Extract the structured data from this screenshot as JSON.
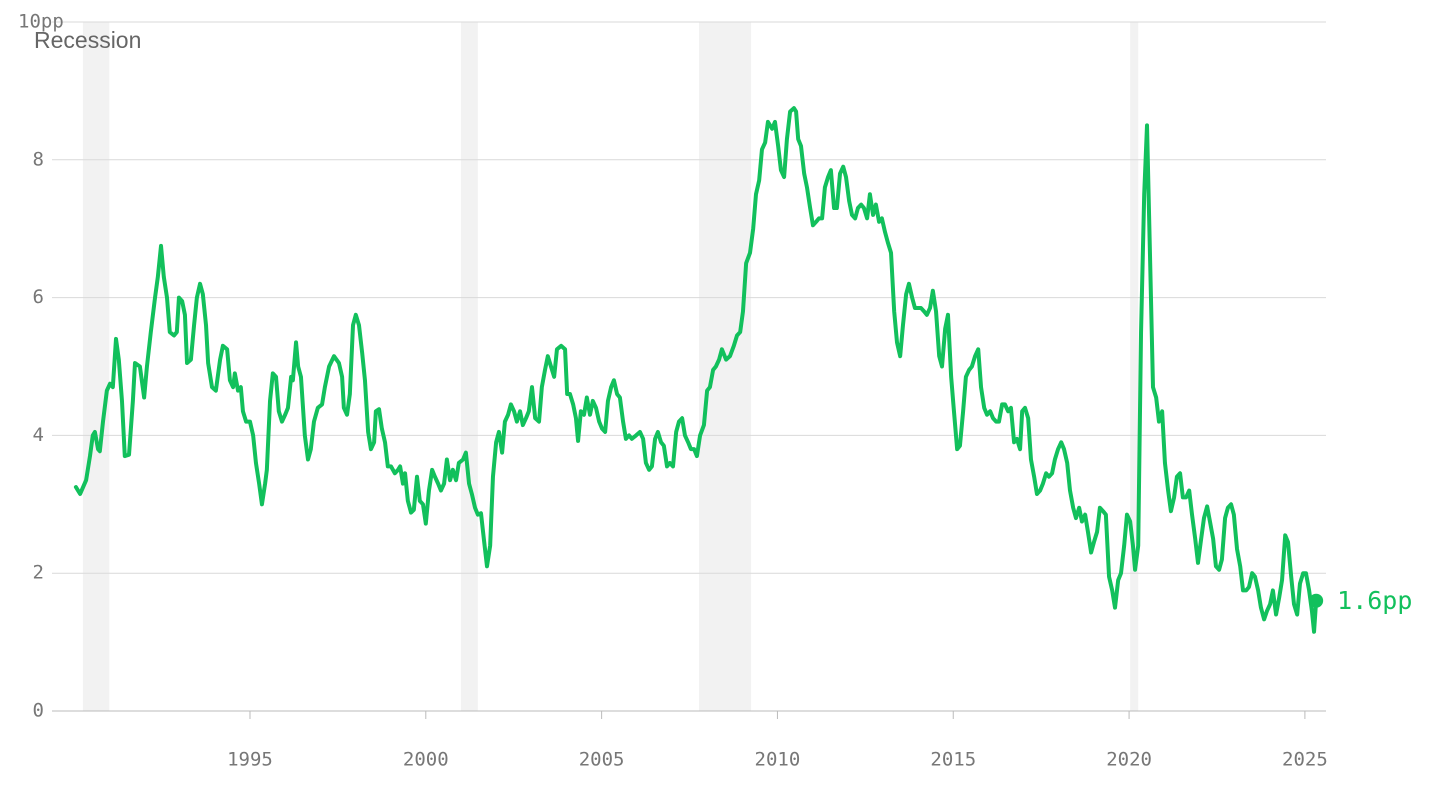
{
  "chart_data": {
    "type": "line",
    "color": "#12c05c",
    "recessions": {
      "label": "Recession",
      "color": "#f2f2f2",
      "spans": [
        [
          1990.25,
          1991.0
        ],
        [
          2001.0,
          2001.48
        ],
        [
          2007.77,
          2009.25
        ],
        [
          2020.03,
          2020.26
        ]
      ]
    },
    "last_label": "1.6pp",
    "xlim": [
      1989.37,
      2025.6
    ],
    "xticks": [
      1995,
      2000,
      2005,
      2010,
      2015,
      2020,
      2025
    ],
    "ylim": [
      0,
      10
    ],
    "yticks": [
      0,
      2,
      4,
      6,
      8,
      {
        "value": 10,
        "label": "10pp"
      }
    ],
    "grid": true,
    "x": [
      1990.05,
      1990.17,
      1990.34,
      1990.45,
      1990.53,
      1990.59,
      1990.68,
      1990.73,
      1990.82,
      1990.93,
      1991.02,
      1991.1,
      1991.19,
      1991.27,
      1991.36,
      1991.44,
      1991.56,
      1991.67,
      1991.73,
      1991.87,
      1991.99,
      1992.07,
      1992.18,
      1992.3,
      1992.38,
      1992.47,
      1992.55,
      1992.64,
      1992.72,
      1992.84,
      1992.92,
      1992.98,
      1993.07,
      1993.15,
      1993.21,
      1993.32,
      1993.41,
      1993.49,
      1993.58,
      1993.66,
      1993.75,
      1993.81,
      1993.92,
      1994.03,
      1994.15,
      1994.23,
      1994.35,
      1994.43,
      1994.52,
      1994.57,
      1994.66,
      1994.74,
      1994.8,
      1994.89,
      1995.0,
      1995.09,
      1995.17,
      1995.26,
      1995.34,
      1995.43,
      1995.48,
      1995.57,
      1995.65,
      1995.74,
      1995.82,
      1995.91,
      1996.0,
      1996.08,
      1996.17,
      1996.22,
      1996.31,
      1996.37,
      1996.45,
      1996.56,
      1996.65,
      1996.73,
      1996.82,
      1996.93,
      1997.05,
      1997.13,
      1997.25,
      1997.39,
      1997.53,
      1997.62,
      1997.67,
      1997.76,
      1997.84,
      1997.93,
      1998.01,
      1998.1,
      1998.19,
      1998.27,
      1998.36,
      1998.44,
      1998.53,
      1998.58,
      1998.67,
      1998.75,
      1998.84,
      1998.92,
      1999.01,
      1999.12,
      1999.21,
      1999.27,
      1999.35,
      1999.41,
      1999.49,
      1999.58,
      1999.66,
      1999.75,
      1999.83,
      1999.92,
      2000.0,
      2000.09,
      2000.18,
      2000.26,
      2000.35,
      2000.43,
      2000.52,
      2000.6,
      2000.69,
      2000.77,
      2000.86,
      2000.94,
      2001.06,
      2001.14,
      2001.23,
      2001.31,
      2001.4,
      2001.48,
      2001.57,
      2001.65,
      2001.74,
      2001.83,
      2001.91,
      2002.0,
      2002.08,
      2002.17,
      2002.25,
      2002.34,
      2002.42,
      2002.51,
      2002.59,
      2002.68,
      2002.76,
      2002.85,
      2002.93,
      2003.02,
      2003.11,
      2003.22,
      2003.3,
      2003.39,
      2003.47,
      2003.56,
      2003.65,
      2003.73,
      2003.85,
      2003.96,
      2004.02,
      2004.1,
      2004.19,
      2004.27,
      2004.33,
      2004.41,
      2004.5,
      2004.58,
      2004.67,
      2004.75,
      2004.84,
      2004.93,
      2005.01,
      2005.1,
      2005.18,
      2005.27,
      2005.35,
      2005.44,
      2005.52,
      2005.61,
      2005.69,
      2005.78,
      2005.86,
      2005.98,
      2006.09,
      2006.18,
      2006.26,
      2006.35,
      2006.43,
      2006.52,
      2006.6,
      2006.69,
      2006.77,
      2006.86,
      2006.94,
      2007.03,
      2007.12,
      2007.2,
      2007.29,
      2007.37,
      2007.46,
      2007.54,
      2007.63,
      2007.71,
      2007.8,
      2007.91,
      2008.0,
      2008.08,
      2008.17,
      2008.25,
      2008.34,
      2008.42,
      2008.54,
      2008.65,
      2008.76,
      2008.85,
      2008.94,
      2009.02,
      2009.11,
      2009.22,
      2009.31,
      2009.39,
      2009.48,
      2009.56,
      2009.65,
      2009.73,
      2009.85,
      2009.93,
      2010.02,
      2010.1,
      2010.19,
      2010.27,
      2010.36,
      2010.47,
      2010.53,
      2010.59,
      2010.67,
      2010.76,
      2010.84,
      2010.93,
      2011.01,
      2011.1,
      2011.18,
      2011.27,
      2011.35,
      2011.44,
      2011.52,
      2011.61,
      2011.69,
      2011.78,
      2011.87,
      2011.95,
      2012.04,
      2012.12,
      2012.21,
      2012.29,
      2012.38,
      2012.46,
      2012.55,
      2012.63,
      2012.72,
      2012.8,
      2012.89,
      2012.97,
      2013.06,
      2013.14,
      2013.23,
      2013.32,
      2013.4,
      2013.49,
      2013.57,
      2013.66,
      2013.74,
      2013.83,
      2013.91,
      2014.0,
      2014.08,
      2014.17,
      2014.25,
      2014.34,
      2014.42,
      2014.51,
      2014.6,
      2014.68,
      2014.77,
      2014.85,
      2014.94,
      2015.02,
      2015.11,
      2015.19,
      2015.28,
      2015.36,
      2015.45,
      2015.53,
      2015.62,
      2015.71,
      2015.79,
      2015.88,
      2015.96,
      2016.05,
      2016.13,
      2016.22,
      2016.3,
      2016.39,
      2016.47,
      2016.56,
      2016.64,
      2016.73,
      2016.81,
      2016.9,
      2016.96,
      2017.04,
      2017.13,
      2017.21,
      2017.3,
      2017.38,
      2017.47,
      2017.55,
      2017.64,
      2017.72,
      2017.81,
      2017.89,
      2017.98,
      2018.07,
      2018.15,
      2018.24,
      2018.32,
      2018.41,
      2018.49,
      2018.58,
      2018.66,
      2018.75,
      2018.83,
      2018.92,
      2019.0,
      2019.09,
      2019.17,
      2019.26,
      2019.34,
      2019.43,
      2019.52,
      2019.6,
      2019.69,
      2019.77,
      2019.86,
      2019.94,
      2020.03,
      2020.11,
      2020.17,
      2020.26,
      2020.34,
      2020.43,
      2020.51,
      2020.6,
      2020.68,
      2020.77,
      2020.85,
      2020.94,
      2021.02,
      2021.11,
      2021.19,
      2021.28,
      2021.36,
      2021.45,
      2021.53,
      2021.62,
      2021.71,
      2021.79,
      2021.88,
      2021.96,
      2022.05,
      2022.13,
      2022.22,
      2022.3,
      2022.39,
      2022.47,
      2022.56,
      2022.64,
      2022.73,
      2022.81,
      2022.9,
      2022.98,
      2023.07,
      2023.16,
      2023.24,
      2023.33,
      2023.41,
      2023.5,
      2023.58,
      2023.67,
      2023.75,
      2023.84,
      2023.92,
      2024.01,
      2024.09,
      2024.18,
      2024.27,
      2024.35,
      2024.44,
      2024.52,
      2024.61,
      2024.69,
      2024.78,
      2024.86,
      2024.95,
      2025.03,
      2025.12,
      2025.2,
      2025.26,
      2025.32
    ],
    "values": [
      3.25,
      3.15,
      3.35,
      3.7,
      4.0,
      4.05,
      3.8,
      3.77,
      4.2,
      4.65,
      4.75,
      4.7,
      5.4,
      5.1,
      4.5,
      3.7,
      3.72,
      4.5,
      5.05,
      5.0,
      4.55,
      5.0,
      5.5,
      6.0,
      6.3,
      6.75,
      6.3,
      6.0,
      5.5,
      5.45,
      5.5,
      6.0,
      5.95,
      5.75,
      5.05,
      5.1,
      5.6,
      6.0,
      6.2,
      6.05,
      5.6,
      5.05,
      4.7,
      4.65,
      5.1,
      5.3,
      5.25,
      4.8,
      4.7,
      4.9,
      4.65,
      4.7,
      4.35,
      4.2,
      4.2,
      4.0,
      3.6,
      3.3,
      3.0,
      3.3,
      3.5,
      4.5,
      4.9,
      4.85,
      4.35,
      4.2,
      4.3,
      4.4,
      4.85,
      4.8,
      5.35,
      5.0,
      4.85,
      4.0,
      3.65,
      3.8,
      4.2,
      4.4,
      4.45,
      4.7,
      5.0,
      5.15,
      5.05,
      4.85,
      4.4,
      4.3,
      4.6,
      5.6,
      5.75,
      5.6,
      5.2,
      4.8,
      4.05,
      3.8,
      3.9,
      4.35,
      4.38,
      4.1,
      3.9,
      3.55,
      3.55,
      3.45,
      3.5,
      3.55,
      3.3,
      3.45,
      3.05,
      2.88,
      2.92,
      3.4,
      3.05,
      3.0,
      2.72,
      3.2,
      3.5,
      3.4,
      3.3,
      3.2,
      3.3,
      3.65,
      3.35,
      3.5,
      3.35,
      3.6,
      3.65,
      3.75,
      3.3,
      3.15,
      2.95,
      2.85,
      2.87,
      2.5,
      2.1,
      2.4,
      3.4,
      3.9,
      4.05,
      3.75,
      4.2,
      4.3,
      4.45,
      4.35,
      4.2,
      4.35,
      4.15,
      4.25,
      4.35,
      4.7,
      4.25,
      4.2,
      4.7,
      4.95,
      5.15,
      5.0,
      4.85,
      5.25,
      5.3,
      5.25,
      4.6,
      4.6,
      4.45,
      4.25,
      3.92,
      4.35,
      4.3,
      4.55,
      4.3,
      4.5,
      4.4,
      4.2,
      4.1,
      4.05,
      4.5,
      4.7,
      4.8,
      4.6,
      4.55,
      4.2,
      3.95,
      4.0,
      3.95,
      4.0,
      4.05,
      3.95,
      3.6,
      3.5,
      3.55,
      3.95,
      4.05,
      3.9,
      3.85,
      3.55,
      3.6,
      3.55,
      4.05,
      4.2,
      4.25,
      4.0,
      3.9,
      3.8,
      3.8,
      3.7,
      4.0,
      4.15,
      4.65,
      4.7,
      4.95,
      5.0,
      5.1,
      5.25,
      5.1,
      5.15,
      5.3,
      5.45,
      5.5,
      5.8,
      6.5,
      6.65,
      7.0,
      7.5,
      7.7,
      8.15,
      8.25,
      8.55,
      8.45,
      8.55,
      8.2,
      7.85,
      7.75,
      8.3,
      8.7,
      8.75,
      8.7,
      8.3,
      8.2,
      7.8,
      7.6,
      7.3,
      7.05,
      7.1,
      7.15,
      7.15,
      7.6,
      7.75,
      7.85,
      7.3,
      7.3,
      7.8,
      7.9,
      7.75,
      7.4,
      7.2,
      7.15,
      7.3,
      7.35,
      7.3,
      7.15,
      7.5,
      7.2,
      7.35,
      7.1,
      7.15,
      6.95,
      6.8,
      6.65,
      5.8,
      5.35,
      5.15,
      5.6,
      6.05,
      6.2,
      6.0,
      5.85,
      5.85,
      5.85,
      5.8,
      5.75,
      5.85,
      6.1,
      5.8,
      5.15,
      5.0,
      5.55,
      5.75,
      4.85,
      4.35,
      3.8,
      3.85,
      4.35,
      4.85,
      4.95,
      5.0,
      5.15,
      5.25,
      4.7,
      4.4,
      4.3,
      4.35,
      4.25,
      4.2,
      4.2,
      4.45,
      4.45,
      4.35,
      4.4,
      3.9,
      3.95,
      3.8,
      4.35,
      4.4,
      4.25,
      3.65,
      3.4,
      3.15,
      3.2,
      3.3,
      3.45,
      3.4,
      3.45,
      3.65,
      3.8,
      3.9,
      3.8,
      3.6,
      3.2,
      2.95,
      2.8,
      2.95,
      2.75,
      2.85,
      2.6,
      2.3,
      2.45,
      2.6,
      2.95,
      2.9,
      2.85,
      1.95,
      1.75,
      1.5,
      1.9,
      2.0,
      2.4,
      2.85,
      2.75,
      2.4,
      2.05,
      2.4,
      5.5,
      7.5,
      8.5,
      6.5,
      4.7,
      4.55,
      4.2,
      4.35,
      3.6,
      3.2,
      2.9,
      3.1,
      3.4,
      3.45,
      3.1,
      3.1,
      3.2,
      2.85,
      2.5,
      2.15,
      2.5,
      2.8,
      2.97,
      2.75,
      2.5,
      2.1,
      2.05,
      2.2,
      2.8,
      2.95,
      3.0,
      2.85,
      2.35,
      2.1,
      1.75,
      1.75,
      1.8,
      2.0,
      1.95,
      1.75,
      1.5,
      1.33,
      1.45,
      1.55,
      1.75,
      1.4,
      1.65,
      1.9,
      2.55,
      2.45,
      1.95,
      1.55,
      1.4,
      1.85,
      2.0,
      2.0,
      1.75,
      1.45,
      1.15,
      1.6
    ]
  }
}
